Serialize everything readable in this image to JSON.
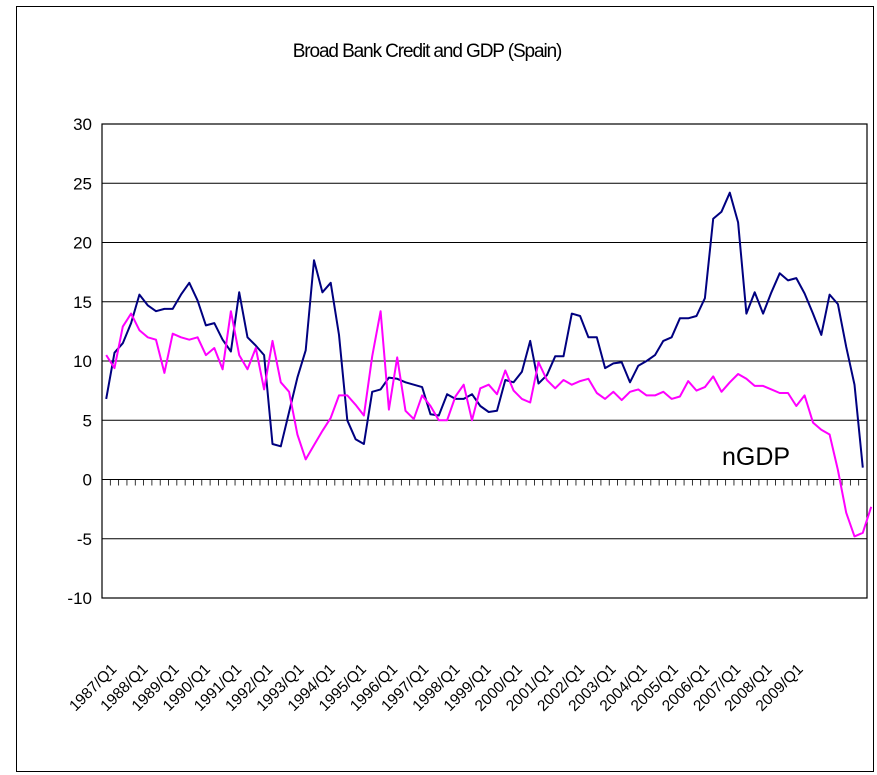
{
  "chart_data": {
    "type": "line",
    "title": "Broad Bank Credit and GDP (Spain)",
    "xlabel": "",
    "ylabel": "",
    "ylim": [
      -10,
      30
    ],
    "yticks": [
      30,
      25,
      20,
      15,
      10,
      5,
      0,
      -5,
      -10
    ],
    "grid": "horizontal",
    "x_labels": [
      "1987/Q1",
      "1988/Q1",
      "1989/Q1",
      "1990/Q1",
      "1991/Q1",
      "1992/Q1",
      "1993/Q1",
      "1994/Q1",
      "1995/Q1",
      "1996/Q1",
      "1997/Q1",
      "1998/Q1",
      "1999/Q1",
      "2000/Q1",
      "2001/Q1",
      "2002/Q1",
      "2003/Q1",
      "2004/Q1",
      "2005/Q1",
      "2006/Q1",
      "2007/Q1",
      "2008/Q1",
      "2009/Q1"
    ],
    "annotation": "nGDP",
    "series": [
      {
        "color": "#000080",
        "values": [
          6.8,
          10.7,
          11.5,
          13.2,
          15.6,
          14.7,
          14.2,
          14.4,
          14.4,
          15.6,
          16.6,
          15.1,
          13.0,
          13.2,
          11.8,
          10.8,
          15.8,
          12.0,
          11.3,
          10.5,
          3.0,
          2.8,
          5.7,
          8.6,
          10.9,
          18.5,
          15.8,
          16.6,
          12.2,
          5.0,
          3.4,
          3.0,
          7.4,
          7.6,
          8.6,
          8.5,
          8.2,
          8.0,
          7.8,
          5.5,
          5.4,
          7.2,
          6.8,
          6.8,
          7.2,
          6.2,
          5.7,
          5.8,
          8.4,
          8.2,
          9.1,
          11.7,
          8.1,
          8.8,
          10.4,
          10.4,
          14.0,
          13.8,
          12.0,
          12.0,
          9.4,
          9.8,
          9.9,
          8.2,
          9.6,
          10.0,
          10.5,
          11.7,
          12.0,
          13.6,
          13.6,
          13.8,
          15.3,
          22.0,
          22.6,
          24.2,
          21.7,
          14.0,
          15.8,
          14.0,
          15.8,
          17.4,
          16.8,
          17.0,
          15.7,
          14.0,
          12.2,
          15.6,
          14.8,
          11.2,
          8.0,
          1.0
        ]
      },
      {
        "color": "#ff00ff",
        "values": [
          10.5,
          9.4,
          12.9,
          14.0,
          12.6,
          12.0,
          11.8,
          9.0,
          12.3,
          12.0,
          11.8,
          12.0,
          10.5,
          11.1,
          9.3,
          14.2,
          10.5,
          9.3,
          11.1,
          7.6,
          11.7,
          8.2,
          7.4,
          3.8,
          1.7,
          2.9,
          4.1,
          5.2,
          7.1,
          7.1,
          6.3,
          5.4,
          10.4,
          14.2,
          5.9,
          10.3,
          5.8,
          5.1,
          7.1,
          6.2,
          5.0,
          5.0,
          7.0,
          8.0,
          5.0,
          7.7,
          8.0,
          7.2,
          9.2,
          7.5,
          6.8,
          6.5,
          9.9,
          8.4,
          7.7,
          8.4,
          8.0,
          8.3,
          8.5,
          7.3,
          6.8,
          7.4,
          6.7,
          7.4,
          7.6,
          7.1,
          7.1,
          7.4,
          6.8,
          7.0,
          8.3,
          7.5,
          7.8,
          8.7,
          7.4,
          8.2,
          8.9,
          8.5,
          7.9,
          7.9,
          7.6,
          7.3,
          7.3,
          6.2,
          7.1,
          4.8,
          4.2,
          3.8,
          0.8,
          -2.8,
          -4.8,
          -4.5,
          -2.3
        ]
      }
    ]
  }
}
